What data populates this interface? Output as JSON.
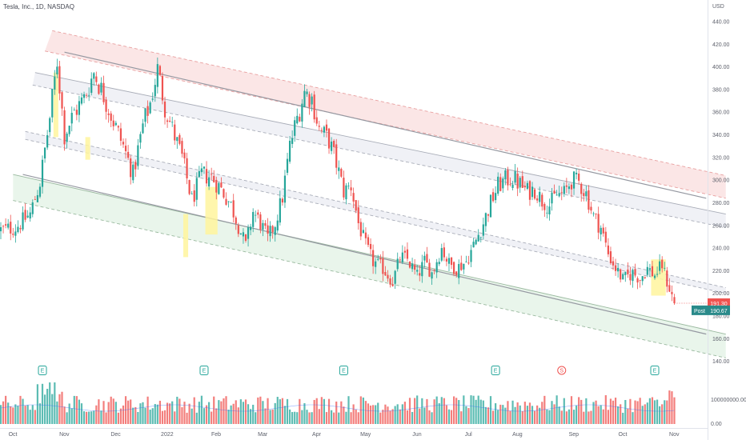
{
  "chart_data": {
    "type": "candlestick",
    "title": "Tesla, Inc., 1D, NASDAQ",
    "currency": "USD",
    "y_ticks": [
      140,
      160,
      180,
      200,
      220,
      240,
      260,
      280,
      300,
      320,
      340,
      360,
      380,
      400,
      420,
      440
    ],
    "y_tick_labels": [
      "140.00",
      "160.00",
      "180.00",
      "200.00",
      "220.00",
      "240.00",
      "260.00",
      "280.00",
      "300.00",
      "320.00",
      "340.00",
      "360.00",
      "380.00",
      "400.00",
      "420.00",
      "440.00"
    ],
    "ylim": [
      130,
      450
    ],
    "x_labels": [
      {
        "label": "Oct",
        "i": 1
      },
      {
        "label": "Nov",
        "i": 22
      },
      {
        "label": "Dec",
        "i": 43
      },
      {
        "label": "2022",
        "i": 64
      },
      {
        "label": "Feb",
        "i": 84
      },
      {
        "label": "Mar",
        "i": 103
      },
      {
        "label": "Apr",
        "i": 125
      },
      {
        "label": "May",
        "i": 145
      },
      {
        "label": "Jun",
        "i": 166
      },
      {
        "label": "Jul",
        "i": 187
      },
      {
        "label": "Aug",
        "i": 207
      },
      {
        "label": "Sep",
        "i": 230
      },
      {
        "label": "Oct",
        "i": 250
      },
      {
        "label": "Nov",
        "i": 271
      }
    ],
    "anchors": [
      [
        0,
        256
      ],
      [
        6,
        258
      ],
      [
        12,
        270
      ],
      [
        16,
        298
      ],
      [
        20,
        355
      ],
      [
        23,
        405
      ],
      [
        26,
        340
      ],
      [
        30,
        360
      ],
      [
        34,
        372
      ],
      [
        38,
        395
      ],
      [
        42,
        375
      ],
      [
        46,
        352
      ],
      [
        50,
        330
      ],
      [
        54,
        305
      ],
      [
        58,
        348
      ],
      [
        61,
        368
      ],
      [
        64,
        398
      ],
      [
        67,
        365
      ],
      [
        70,
        345
      ],
      [
        74,
        320
      ],
      [
        78,
        282
      ],
      [
        82,
        305
      ],
      [
        86,
        303
      ],
      [
        90,
        292
      ],
      [
        94,
        278
      ],
      [
        97,
        260
      ],
      [
        100,
        242
      ],
      [
        103,
        272
      ],
      [
        106,
        262
      ],
      [
        109,
        248
      ],
      [
        112,
        262
      ],
      [
        115,
        285
      ],
      [
        118,
        330
      ],
      [
        121,
        355
      ],
      [
        124,
        378
      ],
      [
        127,
        372
      ],
      [
        130,
        345
      ],
      [
        134,
        335
      ],
      [
        137,
        315
      ],
      [
        140,
        290
      ],
      [
        143,
        295
      ],
      [
        146,
        262
      ],
      [
        149,
        242
      ],
      [
        152,
        228
      ],
      [
        156,
        222
      ],
      [
        160,
        210
      ],
      [
        163,
        232
      ],
      [
        166,
        230
      ],
      [
        170,
        215
      ],
      [
        173,
        228
      ],
      [
        176,
        218
      ],
      [
        180,
        240
      ],
      [
        183,
        226
      ],
      [
        186,
        222
      ],
      [
        190,
        228
      ],
      [
        193,
        242
      ],
      [
        197,
        262
      ],
      [
        200,
        280
      ],
      [
        203,
        295
      ],
      [
        206,
        300
      ],
      [
        209,
        302
      ],
      [
        212,
        296
      ],
      [
        215,
        290
      ],
      [
        218,
        292
      ],
      [
        221,
        282
      ],
      [
        224,
        278
      ],
      [
        227,
        287
      ],
      [
        230,
        288
      ],
      [
        233,
        300
      ],
      [
        236,
        298
      ],
      [
        239,
        288
      ],
      [
        242,
        268
      ],
      [
        245,
        258
      ],
      [
        248,
        235
      ],
      [
        251,
        222
      ],
      [
        254,
        212
      ],
      [
        258,
        218
      ],
      [
        261,
        213
      ],
      [
        264,
        222
      ],
      [
        267,
        216
      ],
      [
        270,
        225
      ],
      [
        272,
        210
      ],
      [
        274,
        198
      ],
      [
        275,
        191.3
      ]
    ],
    "last_price": 191.3,
    "last_price_label": "191.30",
    "post_label": "Post",
    "post_price": 190.67,
    "post_price_label": "190.67",
    "volume_axis_labels": [
      "100000000.00",
      "0.00"
    ],
    "earnings_markers": [
      {
        "label": "E",
        "i": 17
      },
      {
        "label": "E",
        "i": 83
      },
      {
        "label": "E",
        "i": 140
      },
      {
        "label": "E",
        "i": 202
      },
      {
        "label": "S",
        "i": 229
      },
      {
        "label": "E",
        "i": 267
      }
    ],
    "channels": [
      {
        "name": "red-band",
        "color": "#f6c7c7",
        "upper": [
          [
            21,
            432
          ],
          [
            296,
            304
          ]
        ],
        "lower": [
          [
            18,
            414
          ],
          [
            296,
            284
          ]
        ]
      },
      {
        "name": "upper-gray-band",
        "color": "#dde0ea",
        "upper": [
          [
            14,
            395
          ],
          [
            296,
            270
          ]
        ],
        "lower": [
          [
            13,
            384
          ],
          [
            296,
            258
          ]
        ]
      },
      {
        "name": "mid-gray-band",
        "color": "#dde0ea",
        "upper": [
          [
            10,
            343
          ],
          [
            296,
            205
          ]
        ],
        "lower": [
          [
            10,
            336
          ],
          [
            296,
            200
          ]
        ]
      },
      {
        "name": "green-band",
        "color": "#cfe8d3",
        "upper": [
          [
            5,
            305
          ],
          [
            296,
            164
          ]
        ],
        "lower": [
          [
            5,
            282
          ],
          [
            296,
            143
          ]
        ]
      }
    ],
    "highlights": [
      {
        "i0": 22,
        "i1": 23,
        "lo": 338,
        "hi": 395
      },
      {
        "i0": 35,
        "i1": 36,
        "lo": 318,
        "hi": 338
      },
      {
        "i0": 75,
        "i1": 76,
        "lo": 232,
        "hi": 270
      },
      {
        "i0": 84,
        "i1": 88,
        "lo": 252,
        "hi": 294
      },
      {
        "i0": 266,
        "i1": 271,
        "lo": 198,
        "hi": 230
      }
    ],
    "grid": false
  }
}
